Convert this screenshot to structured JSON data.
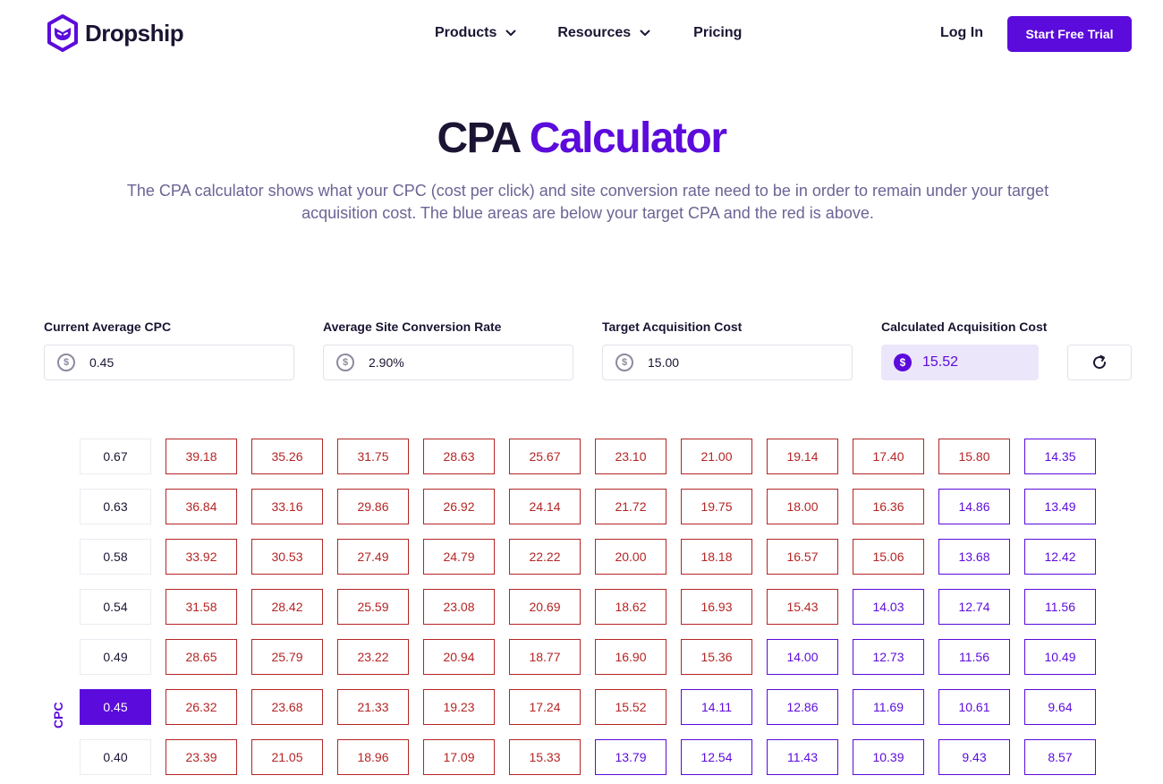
{
  "brand": {
    "name": "Dropship",
    "accent": "#5b0bdb",
    "red": "#b52525"
  },
  "nav": {
    "items": [
      {
        "label": "Products",
        "dropdown": true
      },
      {
        "label": "Resources",
        "dropdown": true
      },
      {
        "label": "Pricing",
        "dropdown": false
      }
    ],
    "login": "Log In",
    "cta": "Start Free Trial"
  },
  "hero": {
    "title_part1": "CPA",
    "title_part2": "Calculator",
    "subtitle": "The CPA calculator shows what your CPC (cost per click) and site conversion rate need to be in order to remain under your target acquisition cost. The blue areas are below your target CPA and the red is above."
  },
  "inputs": {
    "cpc": {
      "label": "Current Average CPC",
      "value": "0.45"
    },
    "conversion": {
      "label": "Average Site Conversion Rate",
      "value": "2.90%"
    },
    "target": {
      "label": "Target Acquisition Cost",
      "value": "15.00"
    },
    "calculated": {
      "label": "Calculated Acquisition Cost",
      "value": "15.52"
    }
  },
  "grid": {
    "axis_label": "CPC",
    "active_cpc": "0.45",
    "rows": [
      {
        "cpc": "0.67",
        "values": [
          "39.18",
          "35.26",
          "31.75",
          "28.63",
          "25.67",
          "23.10",
          "21.00",
          "19.14",
          "17.40",
          "15.80",
          "14.35"
        ]
      },
      {
        "cpc": "0.63",
        "values": [
          "36.84",
          "33.16",
          "29.86",
          "26.92",
          "24.14",
          "21.72",
          "19.75",
          "18.00",
          "16.36",
          "14.86",
          "13.49"
        ]
      },
      {
        "cpc": "0.58",
        "values": [
          "33.92",
          "30.53",
          "27.49",
          "24.79",
          "22.22",
          "20.00",
          "18.18",
          "16.57",
          "15.06",
          "13.68",
          "12.42"
        ]
      },
      {
        "cpc": "0.54",
        "values": [
          "31.58",
          "28.42",
          "25.59",
          "23.08",
          "20.69",
          "18.62",
          "16.93",
          "15.43",
          "14.03",
          "12.74",
          "11.56"
        ]
      },
      {
        "cpc": "0.49",
        "values": [
          "28.65",
          "25.79",
          "23.22",
          "20.94",
          "18.77",
          "16.90",
          "15.36",
          "14.00",
          "12.73",
          "11.56",
          "10.49"
        ]
      },
      {
        "cpc": "0.45",
        "values": [
          "26.32",
          "23.68",
          "21.33",
          "19.23",
          "17.24",
          "15.52",
          "14.11",
          "12.86",
          "11.69",
          "10.61",
          "9.64"
        ]
      },
      {
        "cpc": "0.40",
        "values": [
          "23.39",
          "21.05",
          "18.96",
          "17.09",
          "15.33",
          "13.79",
          "12.54",
          "11.43",
          "10.39",
          "9.43",
          "8.57"
        ]
      }
    ]
  }
}
